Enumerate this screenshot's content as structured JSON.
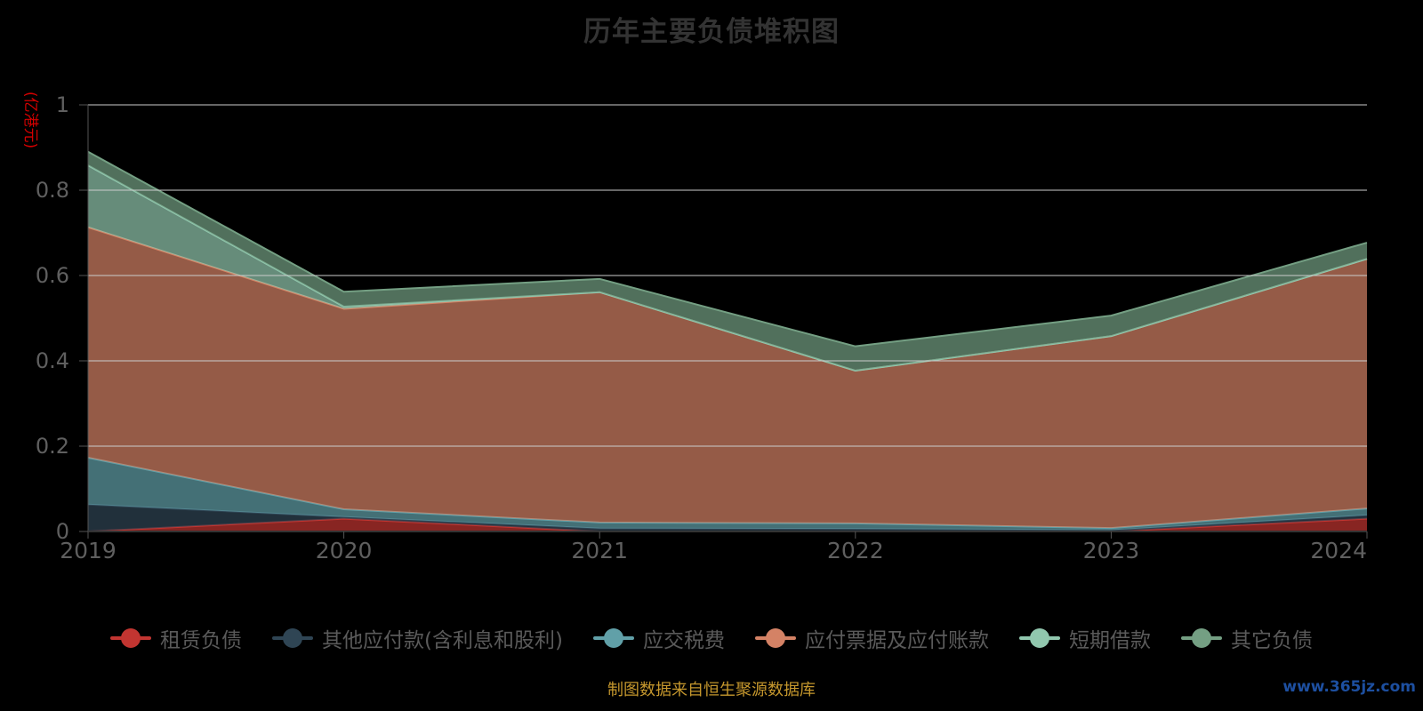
{
  "title": "历年主要负债堆积图",
  "y_axis": {
    "name": "(亿港元)",
    "name_color": "#d40000",
    "tick_labels": [
      "0",
      "0.2",
      "0.4",
      "0.6",
      "0.8",
      "1"
    ]
  },
  "x_axis": {
    "labels": [
      "2019",
      "2020",
      "2021",
      "2022",
      "2023",
      "2024"
    ]
  },
  "caption": "制图数据来自恒生聚源数据库",
  "watermark": "www.365jz.com",
  "colors": {
    "background": "#000000",
    "grid_line": "#cccccc",
    "axis_line": "#555555",
    "baseline": "#333333",
    "tick_label": "#5f5f5f",
    "title_text": "#333333",
    "legend_text": "#5a5a5a",
    "caption_text": "#c5972d",
    "watermark_text": "#1d4fa0"
  },
  "chart_data": {
    "type": "area",
    "stacked": true,
    "title": "历年主要负债堆积图",
    "ylabel": "(亿港元)",
    "unit": "亿港元",
    "x": [
      2019,
      2020,
      2021,
      2022,
      2023,
      2024
    ],
    "series": [
      {
        "name": "租赁负债",
        "color": "#c23531",
        "values": [
          0,
          0.03,
          0,
          0,
          0,
          0.03
        ]
      },
      {
        "name": "其他应付款(含利息和股利)",
        "color": "#2f4554",
        "values": [
          0.063,
          0.004,
          0.007,
          0.006,
          0.003,
          0.008
        ]
      },
      {
        "name": "应交税费",
        "color": "#61a0a8",
        "values": [
          0.11,
          0.018,
          0.014,
          0.013,
          0.005,
          0.016
        ]
      },
      {
        "name": "应付票据及应付账款",
        "color": "#d48265",
        "values": [
          0.54,
          0.47,
          0.54,
          0.358,
          0.45,
          0.585
        ]
      },
      {
        "name": "短期借款",
        "color": "#91c7ae",
        "values": [
          0.145,
          0.005,
          0,
          0,
          0,
          0
        ]
      },
      {
        "name": "其它负债",
        "color": "#749f83",
        "values": [
          0.032,
          0.035,
          0.031,
          0.057,
          0.048,
          0.038
        ]
      }
    ],
    "stack_totals": [
      0.89,
      0.562,
      0.592,
      0.434,
      0.506,
      0.677
    ],
    "ylim": [
      0,
      1
    ],
    "yticks": [
      0,
      0.2,
      0.4,
      0.6,
      0.8,
      1
    ],
    "grid": true,
    "area_opacity": 0.7,
    "legend_position": "bottom"
  }
}
